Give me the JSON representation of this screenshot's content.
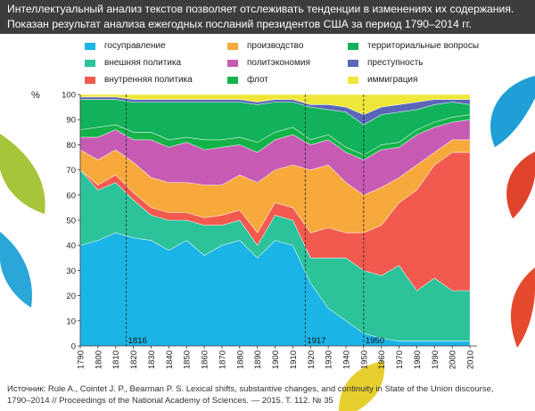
{
  "header": {
    "line1": "Интеллектуальный анализ текстов позволяет отслеживать тенденции в изменениях их содержания.",
    "line2": "Показан результат анализа ежегодных посланий президентов США за период 1790–2014 гг."
  },
  "legend": [
    {
      "label": "госуправление",
      "color": "#1ab4e6"
    },
    {
      "label": "внешняя политика",
      "color": "#2cc39a"
    },
    {
      "label": "внутренняя политика",
      "color": "#f25a4f"
    },
    {
      "label": "производство",
      "color": "#f8a93c"
    },
    {
      "label": "политэкономия",
      "color": "#c75bb3"
    },
    {
      "label": "флот",
      "color": "#14b34a"
    },
    {
      "label": "территориальные вопросы",
      "color": "#12b15c"
    },
    {
      "label": "преступность",
      "color": "#5a66b8"
    },
    {
      "label": "иммиграция",
      "color": "#efe63a"
    }
  ],
  "source": {
    "line1": "Источник: Rule A., Cointet J. P., Bearman P. S. Lexical shifts, substantive changes, and continuity in State of the Union discourse,",
    "line2": "1790–2014 // Proceedings of the National Academy of Sciences. — 2015. T. 112. № 35"
  },
  "chart_data": {
    "type": "area",
    "stacked": true,
    "ylabel": "%",
    "xlim": [
      1790,
      2014
    ],
    "ylim": [
      0,
      100
    ],
    "x_ticks": [
      1790,
      1800,
      1810,
      1820,
      1830,
      1840,
      1850,
      1860,
      1870,
      1880,
      1890,
      1900,
      1910,
      1920,
      1930,
      1940,
      1950,
      1960,
      1970,
      1980,
      1990,
      2000,
      2010
    ],
    "y_ticks": [
      0,
      10,
      20,
      30,
      40,
      50,
      60,
      70,
      80,
      90,
      100
    ],
    "annotations": [
      {
        "x": 1816,
        "label": "1816"
      },
      {
        "x": 1917,
        "label": "1917"
      },
      {
        "x": 1950,
        "label": "1950"
      }
    ],
    "x": [
      1790,
      1800,
      1810,
      1820,
      1830,
      1840,
      1850,
      1860,
      1870,
      1880,
      1890,
      1900,
      1910,
      1920,
      1930,
      1940,
      1950,
      1960,
      1970,
      1980,
      1990,
      2000,
      2010
    ],
    "series": [
      {
        "name": "госуправление",
        "values": [
          40,
          42,
          45,
          43,
          42,
          38,
          42,
          36,
          40,
          42,
          35,
          42,
          40,
          25,
          15,
          10,
          5,
          3,
          2,
          2,
          2,
          2,
          2
        ]
      },
      {
        "name": "внешняя политика",
        "values": [
          30,
          20,
          20,
          15,
          10,
          12,
          8,
          12,
          8,
          8,
          5,
          10,
          10,
          10,
          20,
          25,
          25,
          25,
          30,
          20,
          25,
          20,
          20
        ]
      },
      {
        "name": "внутренняя политика",
        "values": [
          0,
          2,
          3,
          3,
          3,
          3,
          3,
          3,
          4,
          4,
          5,
          5,
          5,
          10,
          12,
          10,
          15,
          20,
          25,
          40,
          45,
          55,
          55
        ]
      },
      {
        "name": "производство",
        "values": [
          8,
          10,
          10,
          12,
          12,
          12,
          12,
          13,
          12,
          14,
          20,
          13,
          17,
          25,
          25,
          20,
          15,
          15,
          10,
          10,
          5,
          5,
          5
        ]
      },
      {
        "name": "политэкономия",
        "values": [
          5,
          9,
          8,
          9,
          15,
          14,
          16,
          14,
          15,
          12,
          12,
          12,
          12,
          10,
          10,
          12,
          14,
          15,
          12,
          12,
          10,
          7,
          8
        ]
      },
      {
        "name": "флот",
        "values": [
          3,
          4,
          2,
          3,
          3,
          3,
          2,
          4,
          3,
          3,
          4,
          3,
          3,
          2,
          2,
          2,
          2,
          2,
          2,
          2,
          2,
          2,
          2
        ]
      },
      {
        "name": "территориальные вопросы",
        "values": [
          12,
          11,
          10,
          12,
          12,
          15,
          14,
          15,
          15,
          14,
          15,
          12,
          10,
          13,
          10,
          14,
          12,
          12,
          12,
          8,
          7,
          6,
          4
        ]
      },
      {
        "name": "преступность",
        "values": [
          1,
          1,
          1,
          1,
          1,
          1,
          1,
          1,
          1,
          1,
          1,
          1,
          1,
          1,
          2,
          2,
          4,
          3,
          3,
          3,
          2,
          1,
          2
        ]
      },
      {
        "name": "иммиграция",
        "values": [
          1,
          1,
          1,
          2,
          2,
          2,
          2,
          2,
          2,
          2,
          3,
          2,
          2,
          4,
          4,
          5,
          8,
          5,
          4,
          3,
          2,
          2,
          2
        ]
      }
    ]
  }
}
